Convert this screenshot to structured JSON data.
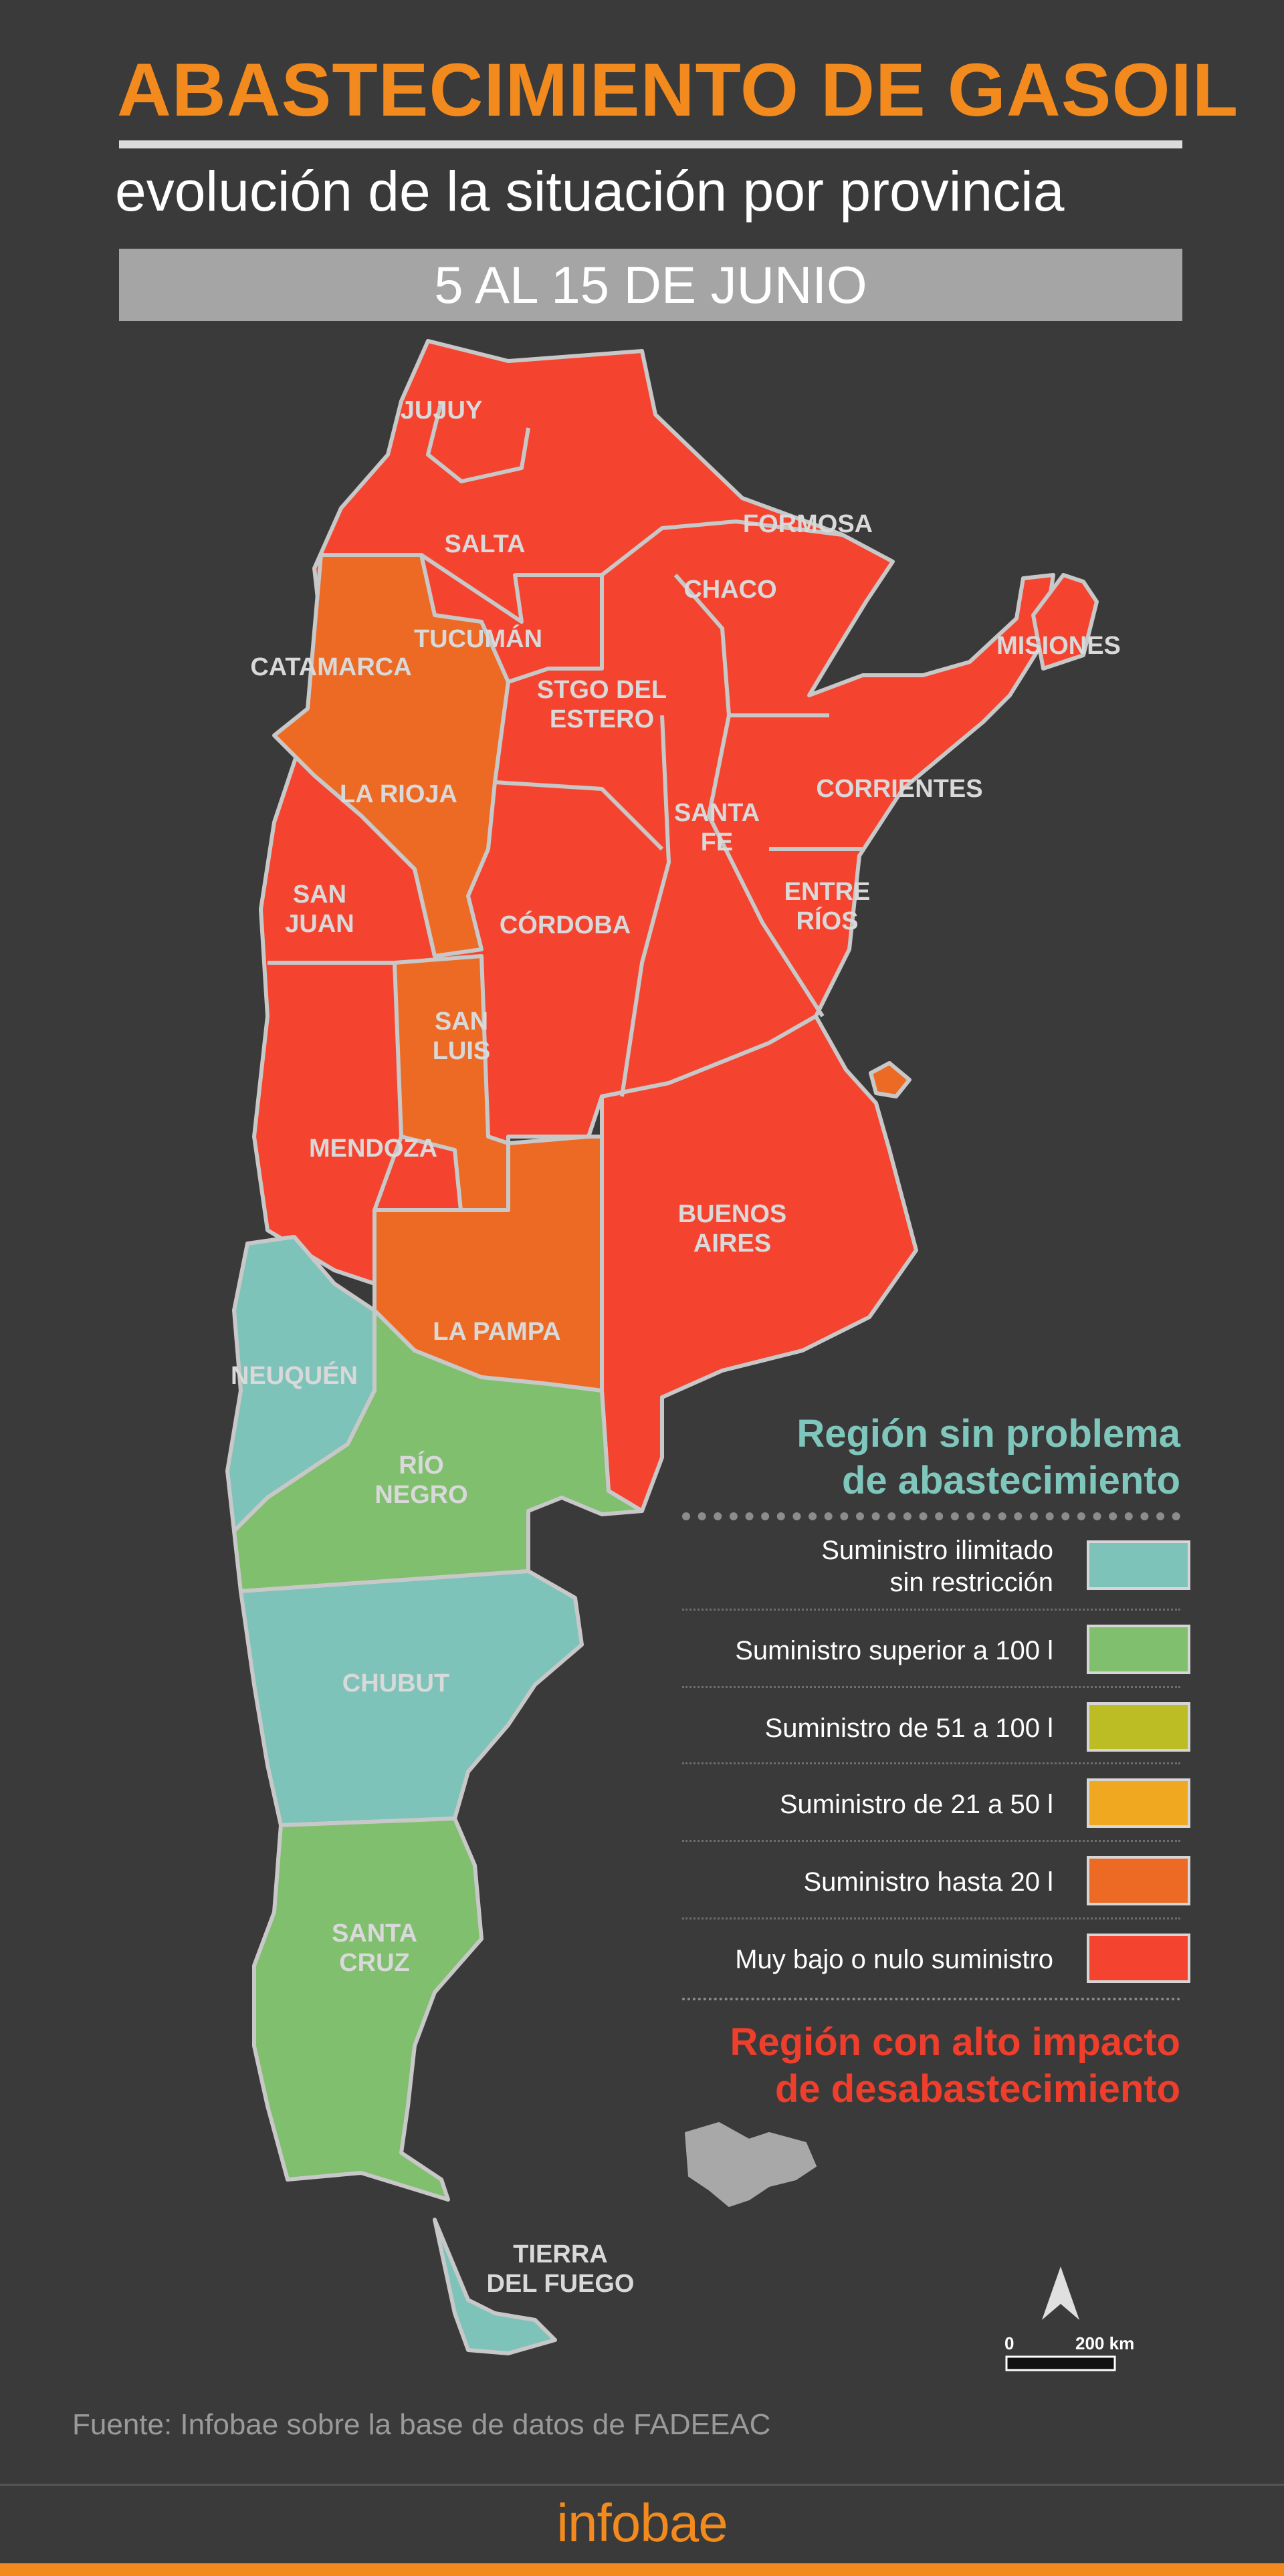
{
  "header": {
    "title": "ABASTECIMIENTO DE GASOIL",
    "subtitle": "evolución de la situación por provincia",
    "date_range": "5 AL 15 DE JUNIO"
  },
  "colors": {
    "very_low": "#f44430",
    "up_to_20": "#ed6a25",
    "from_21_to_50": "#f0a820",
    "from_51_to_100": "#bcbc24",
    "over_100": "#7fbf6e",
    "unlimited": "#7ec3b9",
    "background": "#3a3a3a",
    "accent": "#f28a1e"
  },
  "provinces": [
    {
      "name": "JUJUY",
      "status": "Muy bajo o nulo suministro"
    },
    {
      "name": "SALTA",
      "status": "Muy bajo o nulo suministro"
    },
    {
      "name": "FORMOSA",
      "status": "Muy bajo o nulo suministro"
    },
    {
      "name": "CHACO",
      "status": "Muy bajo o nulo suministro"
    },
    {
      "name": "MISIONES",
      "status": "Muy bajo o nulo suministro"
    },
    {
      "name": "TUCUMÁN",
      "status": "Muy bajo o nulo suministro"
    },
    {
      "name": "CATAMARCA",
      "status": "Suministro hasta 20 l"
    },
    {
      "name": "STGO DEL",
      "name_line2": "ESTERO",
      "status": "Muy bajo o nulo suministro"
    },
    {
      "name": "CORRIENTES",
      "status": "Muy bajo o nulo suministro"
    },
    {
      "name": "LA RIOJA",
      "status": "Suministro hasta 20 l"
    },
    {
      "name": "SANTA",
      "name_line2": "FE",
      "status": "Muy bajo o nulo suministro"
    },
    {
      "name": "ENTRE",
      "name_line2": "RÍOS",
      "status": "Muy bajo o nulo suministro"
    },
    {
      "name": "SAN",
      "name_line2": "JUAN",
      "status": "Muy bajo o nulo suministro"
    },
    {
      "name": "CÓRDOBA",
      "status": "Muy bajo o nulo suministro"
    },
    {
      "name": "SAN",
      "name_line2": "LUIS",
      "status": "Suministro hasta 20 l"
    },
    {
      "name": "MENDOZA",
      "status": "Muy bajo o nulo suministro"
    },
    {
      "name": "BUENOS",
      "name_line2": "AIRES",
      "status": "Muy bajo o nulo suministro"
    },
    {
      "name": "LA PAMPA",
      "status": "Suministro hasta 20 l"
    },
    {
      "name": "NEUQUÉN",
      "status": "Suministro ilimitado sin restricción"
    },
    {
      "name": "RÍO",
      "name_line2": "NEGRO",
      "status": "Suministro superior a 100 l"
    },
    {
      "name": "CHUBUT",
      "status": "Suministro ilimitado sin restricción"
    },
    {
      "name": "SANTA",
      "name_line2": "CRUZ",
      "status": "Suministro superior a 100 l"
    },
    {
      "name": "TIERRA",
      "name_line2": "DEL FUEGO",
      "status": "Suministro ilimitado sin restricción"
    }
  ],
  "legend": {
    "good_region_heading_line1": "Región sin problema",
    "good_region_heading_line2": "de abastecimiento",
    "items": [
      {
        "label_line1": "Suministro ilimitado",
        "label_line2": "sin restricción",
        "color": "#7ec3b9"
      },
      {
        "label_line1": "Suministro superior a 100 l",
        "label_line2": "",
        "color": "#7fbf6e"
      },
      {
        "label_line1": "Suministro de 51 a 100 l",
        "label_line2": "",
        "color": "#bcbc24"
      },
      {
        "label_line1": "Suministro de 21 a 50 l",
        "label_line2": "",
        "color": "#f0a820"
      },
      {
        "label_line1": "Suministro hasta 20 l",
        "label_line2": "",
        "color": "#ed6a25"
      },
      {
        "label_line1": "Muy bajo o nulo suministro",
        "label_line2": "",
        "color": "#f44430"
      }
    ],
    "bad_region_heading_line1": "Región con alto impacto",
    "bad_region_heading_line2": "de desabastecimiento"
  },
  "scale_bar": {
    "start_label": "0",
    "end_label": "200 km"
  },
  "source": "Fuente: Infobae sobre la base de datos de FADEEAC",
  "brand": "infobae"
}
